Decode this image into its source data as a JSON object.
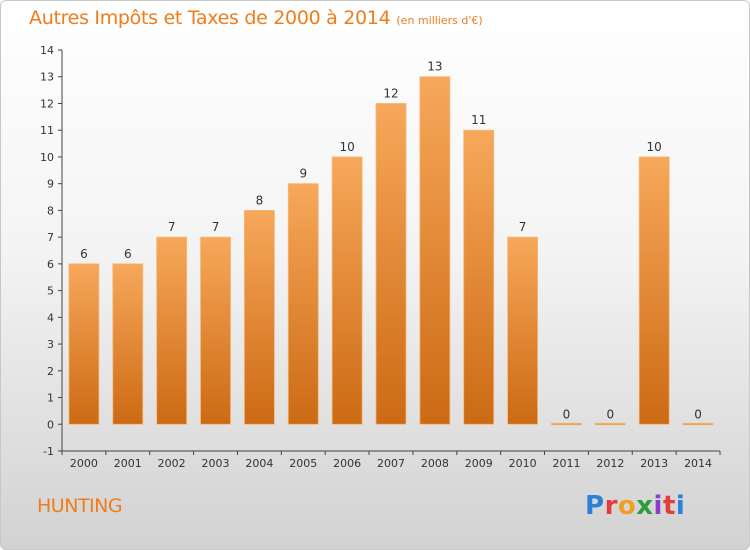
{
  "header": {
    "title": "Autres Impôts et Taxes de 2000 à 2014",
    "unit": "(en milliers d'€)"
  },
  "footer": {
    "commune": "HUNTING",
    "logo_text": "Proxiti"
  },
  "colors": {
    "bar_top": "#f7a85a",
    "bar_bottom": "#cc6a14",
    "accent": "#f07c1c"
  },
  "chart_data": {
    "type": "bar",
    "title": "Autres Impôts et Taxes de 2000 à 2014",
    "subtitle": "(en milliers d'€)",
    "categories": [
      "2000",
      "2001",
      "2002",
      "2003",
      "2004",
      "2005",
      "2006",
      "2007",
      "2008",
      "2009",
      "2010",
      "2011",
      "2012",
      "2013",
      "2014"
    ],
    "values": [
      6,
      6,
      7,
      7,
      8,
      9,
      10,
      12,
      13,
      11,
      7,
      0,
      0,
      10,
      0
    ],
    "data_labels": [
      "6",
      "6",
      "7",
      "7",
      "8",
      "9",
      "10",
      "12",
      "13",
      "11",
      "7",
      "0",
      "0",
      "10",
      "0"
    ],
    "y_ticks": [
      "-1",
      "0",
      "1",
      "2",
      "3",
      "4",
      "5",
      "6",
      "7",
      "8",
      "9",
      "10",
      "11",
      "12",
      "13",
      "14"
    ],
    "ylim": [
      -1,
      14
    ],
    "xlabel": "",
    "ylabel": "",
    "grid": false,
    "legend": "none"
  }
}
